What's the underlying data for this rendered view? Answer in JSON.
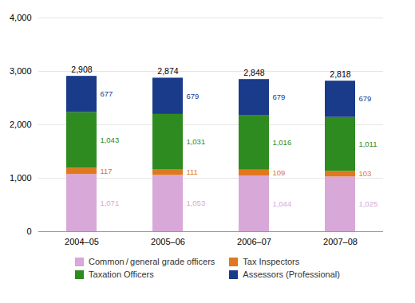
{
  "chart_data": {
    "type": "bar",
    "stacked": true,
    "categories": [
      "2004–05",
      "2005–06",
      "2006–07",
      "2007–08"
    ],
    "series": [
      {
        "name": "Common / general grade officers",
        "color": "#D8A8D8",
        "values": [
          1071,
          1053,
          1044,
          1025
        ],
        "value_labels": [
          "1,071",
          "1,053",
          "1,044",
          "1,025"
        ]
      },
      {
        "name": "Tax Inspectors",
        "color": "#E07820",
        "values": [
          117,
          111,
          109,
          103
        ]
      },
      {
        "name": "Taxation Officers",
        "color": "#2E8B20",
        "values": [
          1043,
          1031,
          1016,
          1011
        ],
        "value_labels": [
          "1,043",
          "1,031",
          "1,016",
          "1,011"
        ]
      },
      {
        "name": "Assessors (Professional)",
        "color": "#1A3A8A",
        "values": [
          677,
          679,
          679,
          679
        ]
      }
    ],
    "totals": [
      2908,
      2874,
      2848,
      2818
    ],
    "total_labels": [
      "2,908",
      "2,874",
      "2,848",
      "2,818"
    ],
    "data_labels": true,
    "ylim": [
      0,
      4000
    ],
    "yticks": [
      0,
      {
        "value": 1000,
        "label": "1,000"
      },
      {
        "value": 2000,
        "label": "2,000"
      },
      {
        "value": 3000,
        "label": "3,000"
      },
      {
        "value": 4000,
        "label": "4,000"
      }
    ],
    "grid": true,
    "legend": "bottom"
  }
}
